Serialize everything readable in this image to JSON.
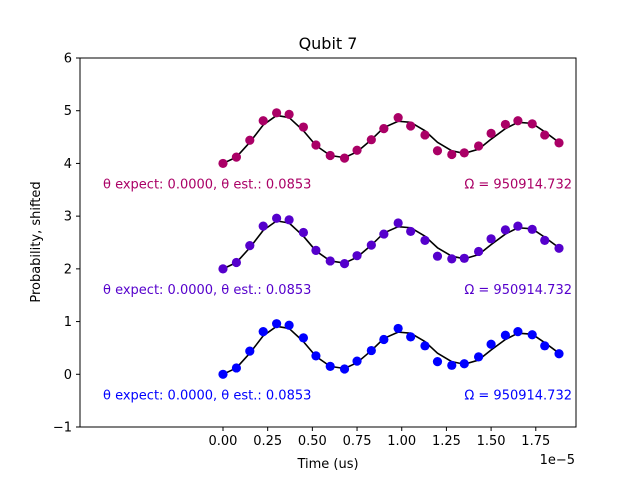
{
  "chart_data": {
    "type": "scatter",
    "title": "Qubit 7",
    "xlabel": "Time (us)",
    "ylabel": "Probability, shifted",
    "x_multiplier_label": "1e−5",
    "xlim": [
      -8e-06,
      1.975e-05
    ],
    "ylim": [
      -1,
      6
    ],
    "x_ticks": [
      0,
      2.5e-06,
      5e-06,
      7.5e-06,
      1e-05,
      1.25e-05,
      1.5e-05,
      1.75e-05
    ],
    "x_tick_labels": [
      "0.00",
      "0.25",
      "0.50",
      "0.75",
      "1.00",
      "1.25",
      "1.50",
      "1.75"
    ],
    "y_ticks": [
      -1,
      0,
      1,
      2,
      3,
      4,
      5,
      6
    ],
    "y_tick_labels": [
      "−1",
      "0",
      "1",
      "2",
      "3",
      "4",
      "5",
      "6"
    ],
    "x": [
      0,
      7.5e-07,
      1.5e-06,
      2.25e-06,
      3e-06,
      3.7e-06,
      4.5e-06,
      5.2e-06,
      6e-06,
      6.8e-06,
      7.5e-06,
      8.3e-06,
      9e-06,
      9.8e-06,
      1.05e-05,
      1.13e-05,
      1.2e-05,
      1.28e-05,
      1.35e-05,
      1.43e-05,
      1.5e-05,
      1.58e-05,
      1.65e-05,
      1.73e-05,
      1.8e-05,
      1.88e-05
    ],
    "series": [
      {
        "color": "#0000ff",
        "offset": 0,
        "values": [
          0.0,
          0.12,
          0.44,
          0.81,
          0.96,
          0.93,
          0.69,
          0.35,
          0.15,
          0.1,
          0.25,
          0.45,
          0.66,
          0.87,
          0.71,
          0.54,
          0.24,
          0.17,
          0.2,
          0.33,
          0.57,
          0.74,
          0.81,
          0.75,
          0.54,
          0.39
        ],
        "fit": [
          0.0,
          0.12,
          0.4,
          0.73,
          0.91,
          0.87,
          0.62,
          0.34,
          0.15,
          0.11,
          0.22,
          0.45,
          0.68,
          0.8,
          0.78,
          0.62,
          0.4,
          0.24,
          0.19,
          0.27,
          0.46,
          0.66,
          0.78,
          0.76,
          0.6,
          0.4
        ],
        "theta_label": "θ expect: 0.0000, θ est.: 0.0853",
        "omega_label": "Ω = 950914.732"
      },
      {
        "color": "#5500cc",
        "offset": 2,
        "values": [
          2.0,
          2.12,
          2.44,
          2.81,
          2.96,
          2.93,
          2.69,
          2.35,
          2.15,
          2.1,
          2.25,
          2.45,
          2.66,
          2.87,
          2.71,
          2.54,
          2.24,
          2.19,
          2.2,
          2.33,
          2.57,
          2.74,
          2.81,
          2.75,
          2.54,
          2.39
        ],
        "fit": [
          2.0,
          2.12,
          2.4,
          2.73,
          2.91,
          2.87,
          2.62,
          2.34,
          2.15,
          2.11,
          2.22,
          2.45,
          2.68,
          2.8,
          2.78,
          2.62,
          2.4,
          2.24,
          2.19,
          2.27,
          2.46,
          2.66,
          2.78,
          2.76,
          2.6,
          2.4
        ],
        "theta_label": "θ expect: 0.0000, θ est.: 0.0853",
        "omega_label": "Ω = 950914.732"
      },
      {
        "color": "#aa0066",
        "offset": 4,
        "values": [
          4.0,
          4.12,
          4.44,
          4.81,
          4.96,
          4.93,
          4.69,
          4.35,
          4.15,
          4.1,
          4.25,
          4.45,
          4.66,
          4.87,
          4.71,
          4.54,
          4.24,
          4.17,
          4.2,
          4.33,
          4.57,
          4.74,
          4.81,
          4.75,
          4.54,
          4.39
        ],
        "fit": [
          4.0,
          4.12,
          4.4,
          4.73,
          4.91,
          4.87,
          4.62,
          4.34,
          4.15,
          4.11,
          4.22,
          4.45,
          4.68,
          4.8,
          4.78,
          4.62,
          4.4,
          4.24,
          4.19,
          4.27,
          4.46,
          4.66,
          4.78,
          4.76,
          4.6,
          4.4
        ],
        "theta_label": "θ expect: 0.0000, θ est.: 0.0853",
        "omega_label": "Ω = 950914.732"
      }
    ],
    "fit_color": "#000000",
    "grid": false,
    "legend": "none"
  }
}
